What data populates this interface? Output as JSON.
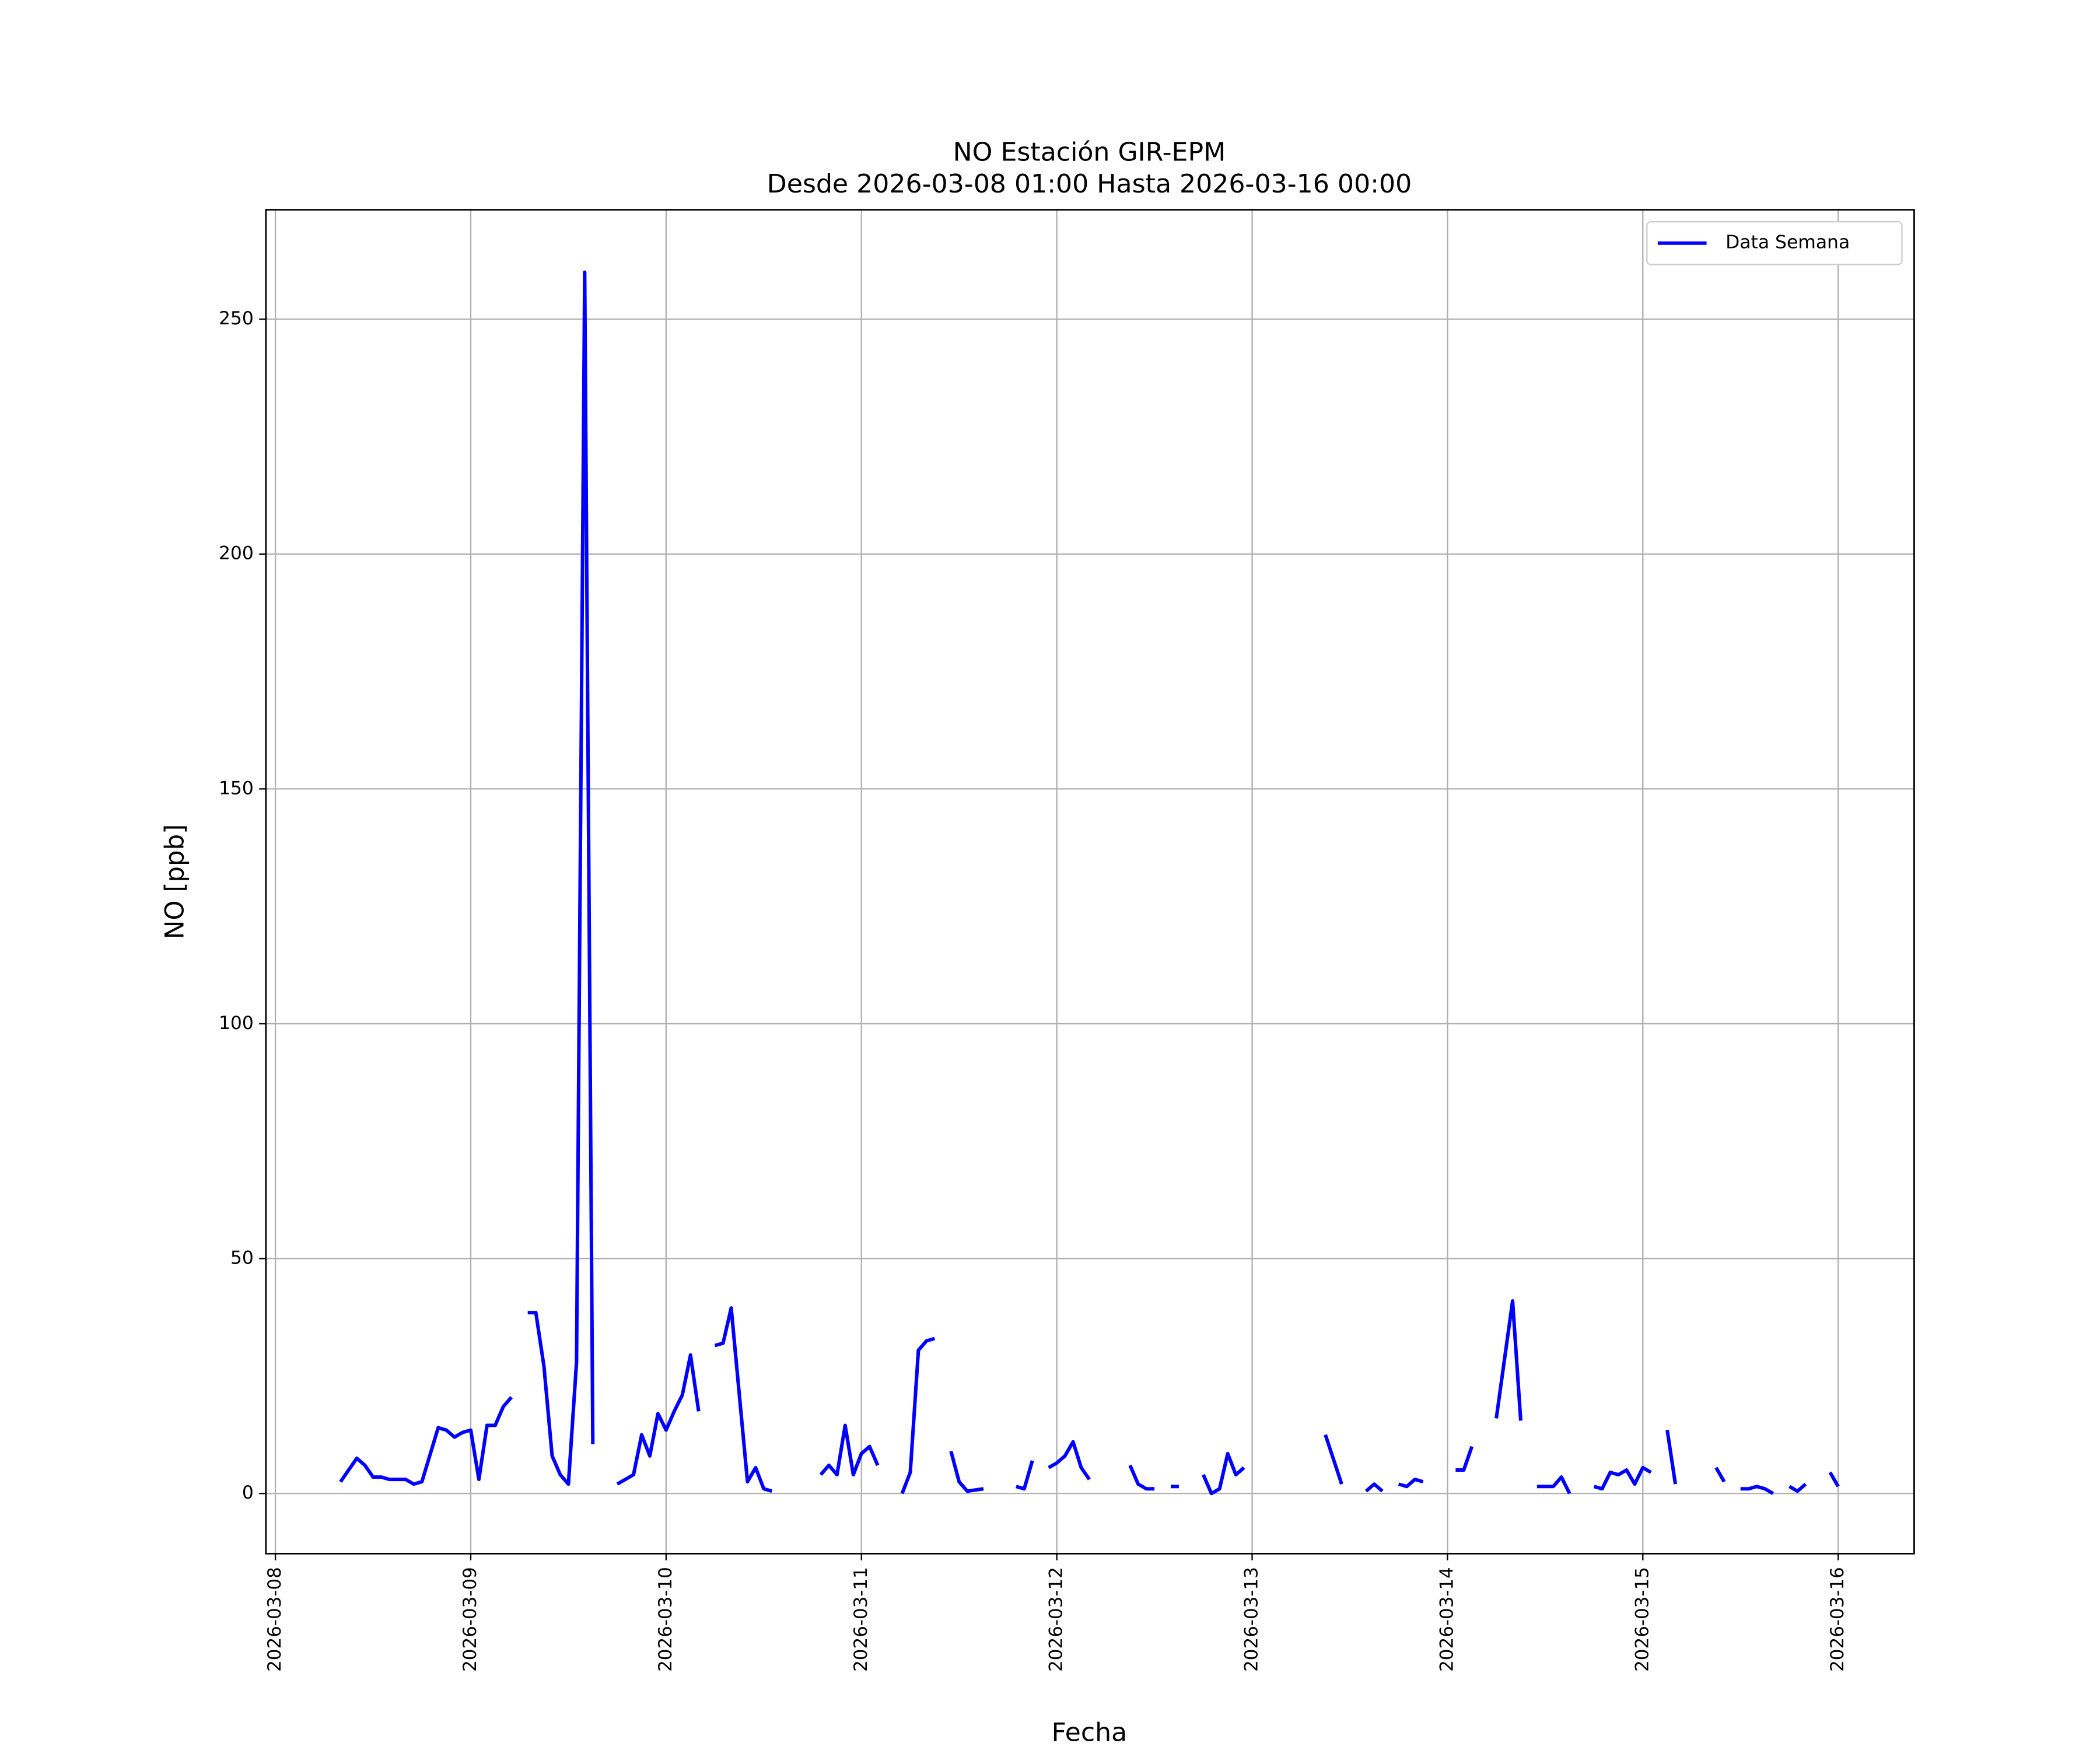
{
  "chart_data": {
    "type": "line",
    "title": "NO Estación GIR-EPM",
    "subtitle": "Desde 2026-03-08 01:00 Hasta 2026-03-16 00:00",
    "x_label": "Fecha",
    "y_label": "NO [ppb]",
    "x": [
      "2026-03-08 08:00",
      "2026-03-08 10:00",
      "2026-03-08 11:00",
      "2026-03-08 12:00",
      "2026-03-08 13:00",
      "2026-03-08 14:00",
      "2026-03-08 16:00",
      "2026-03-08 17:00",
      "2026-03-08 18:00",
      "2026-03-08 20:00",
      "2026-03-08 21:00",
      "2026-03-08 22:00",
      "2026-03-08 23:00",
      "2026-03-09 00:00",
      "2026-03-09 01:00",
      "2026-03-09 02:00",
      "2026-03-09 03:00",
      "2026-03-09 04:00",
      "2026-03-09 05:00",
      "2026-03-09 06:00",
      "2026-03-09 07:00",
      "2026-03-09 08:00",
      "2026-03-09 09:00",
      "2026-03-09 10:00",
      "2026-03-09 11:00",
      "2026-03-09 12:00",
      "2026-03-09 13:00",
      "2026-03-09 14:00",
      "2026-03-09 15:00",
      "2026-03-09 16:00",
      "2026-03-09 18:00",
      "2026-03-09 20:00",
      "2026-03-09 21:00",
      "2026-03-09 22:00",
      "2026-03-09 23:00",
      "2026-03-10 00:00",
      "2026-03-10 01:00",
      "2026-03-10 02:00",
      "2026-03-10 03:00",
      "2026-03-10 04:00",
      "2026-03-10 05:00",
      "2026-03-10 06:00",
      "2026-03-10 07:00",
      "2026-03-10 08:00",
      "2026-03-10 10:00",
      "2026-03-10 11:00",
      "2026-03-10 12:00",
      "2026-03-10 13:00",
      "2026-03-10 14:00",
      "2026-03-10 19:00",
      "2026-03-10 20:00",
      "2026-03-10 21:00",
      "2026-03-10 22:00",
      "2026-03-10 23:00",
      "2026-03-11 00:00",
      "2026-03-11 01:00",
      "2026-03-11 02:00",
      "2026-03-11 03:00",
      "2026-03-11 05:00",
      "2026-03-11 06:00",
      "2026-03-11 07:00",
      "2026-03-11 08:00",
      "2026-03-11 09:00",
      "2026-03-11 10:00",
      "2026-03-11 11:00",
      "2026-03-11 12:00",
      "2026-03-11 13:00",
      "2026-03-11 15:00",
      "2026-03-11 16:00",
      "2026-03-11 19:00",
      "2026-03-11 20:00",
      "2026-03-11 21:00",
      "2026-03-11 22:00",
      "2026-03-11 23:00",
      "2026-03-12 00:00",
      "2026-03-12 01:00",
      "2026-03-12 02:00",
      "2026-03-12 03:00",
      "2026-03-12 04:00",
      "2026-03-12 05:00",
      "2026-03-12 09:00",
      "2026-03-12 10:00",
      "2026-03-12 11:00",
      "2026-03-12 12:00",
      "2026-03-12 13:00",
      "2026-03-12 14:00",
      "2026-03-12 15:00",
      "2026-03-12 16:00",
      "2026-03-12 18:00",
      "2026-03-12 19:00",
      "2026-03-12 20:00",
      "2026-03-12 21:00",
      "2026-03-12 22:00",
      "2026-03-12 23:00",
      "2026-03-13 00:00",
      "2026-03-13 09:00",
      "2026-03-13 11:00",
      "2026-03-13 12:00",
      "2026-03-13 14:00",
      "2026-03-13 15:00",
      "2026-03-13 16:00",
      "2026-03-13 17:00",
      "2026-03-13 18:00",
      "2026-03-13 19:00",
      "2026-03-13 20:00",
      "2026-03-13 21:00",
      "2026-03-13 22:00",
      "2026-03-14 01:00",
      "2026-03-14 02:00",
      "2026-03-14 03:00",
      "2026-03-14 04:00",
      "2026-03-14 06:00",
      "2026-03-14 08:00",
      "2026-03-14 09:00",
      "2026-03-14 10:00",
      "2026-03-14 11:00",
      "2026-03-14 13:00",
      "2026-03-14 14:00",
      "2026-03-14 15:00",
      "2026-03-14 16:00",
      "2026-03-14 18:00",
      "2026-03-14 19:00",
      "2026-03-14 20:00",
      "2026-03-14 21:00",
      "2026-03-14 22:00",
      "2026-03-14 23:00",
      "2026-03-15 00:00",
      "2026-03-15 01:00",
      "2026-03-15 02:00",
      "2026-03-15 03:00",
      "2026-03-15 04:00",
      "2026-03-15 05:00",
      "2026-03-15 09:00",
      "2026-03-15 10:00",
      "2026-03-15 11:00",
      "2026-03-15 12:00",
      "2026-03-15 13:00",
      "2026-03-15 14:00",
      "2026-03-15 15:00",
      "2026-03-15 16:00",
      "2026-03-15 17:00",
      "2026-03-15 18:00",
      "2026-03-15 19:00",
      "2026-03-15 20:00",
      "2026-03-15 21:00",
      "2026-03-15 23:00",
      "2026-03-16 00:00"
    ],
    "series": [
      {
        "name": "Data Semana",
        "color": "#0000ff",
        "values": [
          2.5,
          7.5,
          6,
          3.5,
          3.5,
          3,
          3,
          2,
          2.5,
          14,
          13.5,
          12,
          13,
          13.5,
          3,
          14.5,
          14.5,
          18.5,
          20.5,
          null,
          38.5,
          38.5,
          27,
          8,
          4,
          2,
          28,
          260,
          10.5,
          null,
          2,
          4,
          12.5,
          8,
          17,
          13.5,
          17.5,
          21,
          29.5,
          17.5,
          null,
          31.5,
          32,
          39.5,
          2.5,
          5.5,
          1,
          0.5,
          null,
          4,
          6,
          4,
          14.5,
          4,
          8.5,
          10,
          6,
          null,
          0,
          4.5,
          30.5,
          32.5,
          33,
          null,
          9,
          2.5,
          0.5,
          1,
          null,
          1.5,
          1,
          7,
          null,
          5.5,
          6.5,
          8,
          11,
          5.5,
          3,
          null,
          6,
          2,
          1,
          1,
          null,
          1.5,
          1.5,
          null,
          4,
          0,
          1,
          8.5,
          4,
          5.5,
          null,
          12.5,
          2,
          null,
          0.5,
          2,
          0.5,
          null,
          2,
          1.5,
          3,
          2.5,
          null,
          5,
          5,
          10,
          null,
          16,
          41,
          15.5,
          null,
          1.5,
          1.5,
          3.5,
          0,
          null,
          1.5,
          1,
          4.5,
          4,
          5,
          2,
          5.5,
          4.5,
          null,
          13.5,
          2,
          null,
          5.5,
          2.5,
          null,
          1,
          1,
          1.5,
          1,
          0,
          null,
          1.5,
          0.5,
          2,
          null,
          4.5,
          1.5
        ]
      }
    ],
    "xlim": [
      "2026-03-07 22:50",
      "2026-03-16 09:20"
    ],
    "xticks": [
      "2026-03-08",
      "2026-03-09",
      "2026-03-10",
      "2026-03-11",
      "2026-03-12",
      "2026-03-13",
      "2026-03-14",
      "2026-03-15",
      "2026-03-16"
    ],
    "ylim": [
      -12.8,
      273.3
    ],
    "yticks": [
      0,
      50,
      100,
      150,
      200,
      250
    ],
    "grid": true,
    "legend": "upper right"
  }
}
